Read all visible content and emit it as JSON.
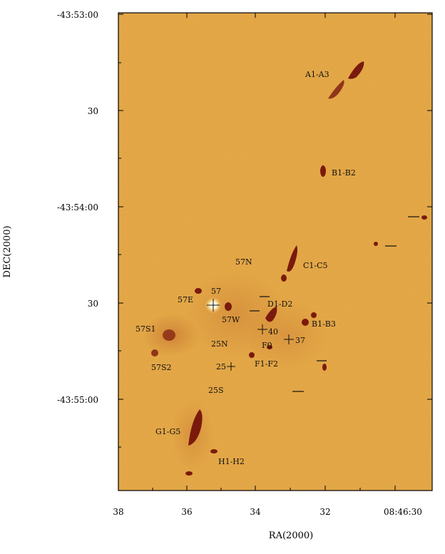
{
  "figure": {
    "xlabel": "RA(2000)",
    "ylabel": "DEC(2000)",
    "x_ticks": [
      "38",
      "36",
      "34",
      "32",
      "08:46:30"
    ],
    "y_ticks": [
      "-43:53:00",
      "30",
      "-43:54:00",
      "30",
      "-43:55:00"
    ],
    "colors": {
      "background": "#e7a94a",
      "knot": "#7a1a0c",
      "star": "#fff6c8"
    }
  },
  "sources": [
    "A1-A3",
    "B1-B2",
    "C1-C5",
    "57N",
    "57",
    "57E",
    "D1-D2",
    "57W",
    "40",
    "B1-B3",
    "57S1",
    "25N",
    "F0",
    "37",
    "57S2",
    "25",
    "F1-F2",
    "25S",
    "G1-G5",
    "H1-H2"
  ]
}
